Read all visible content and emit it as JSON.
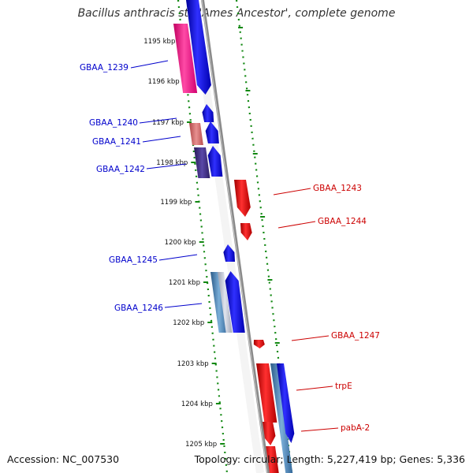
{
  "title": "Bacillus anthracis str. 'Ames Ancestor', complete genome",
  "footer": {
    "accession": "Accession: NC_007530",
    "summary": "Topology: circular; Length: 5,227,419 bp; Genes: 5,336"
  },
  "colors": {
    "forward_label": "#0000cc",
    "reverse_label": "#cc0000",
    "backbone": "#8a8a8a",
    "tick": "#118811",
    "gene_blue": "#0000ee",
    "gene_red": "#ee0000",
    "gene_pink": "#ff1a8c",
    "gene_salmon": "#d96a6a",
    "gene_navy": "#3c2a80",
    "gene_steel": "#4682b4"
  },
  "ticks": [
    {
      "label": "1195 kbp"
    },
    {
      "label": "1196 kbp"
    },
    {
      "label": "1197 kbp"
    },
    {
      "label": "1198 kbp"
    },
    {
      "label": "1199 kbp"
    },
    {
      "label": "1200 kbp"
    },
    {
      "label": "1201 kbp"
    },
    {
      "label": "1202 kbp"
    },
    {
      "label": "1203 kbp"
    },
    {
      "label": "1204 kbp"
    },
    {
      "label": "1205 kbp"
    }
  ],
  "gene_labels": {
    "forward": [
      "GBAA_1239",
      "GBAA_1240",
      "GBAA_1241",
      "GBAA_1242",
      "GBAA_1245",
      "GBAA_1246"
    ],
    "reverse": [
      "GBAA_1243",
      "GBAA_1244",
      "GBAA_1247",
      "trpE",
      "pabA-2"
    ]
  }
}
